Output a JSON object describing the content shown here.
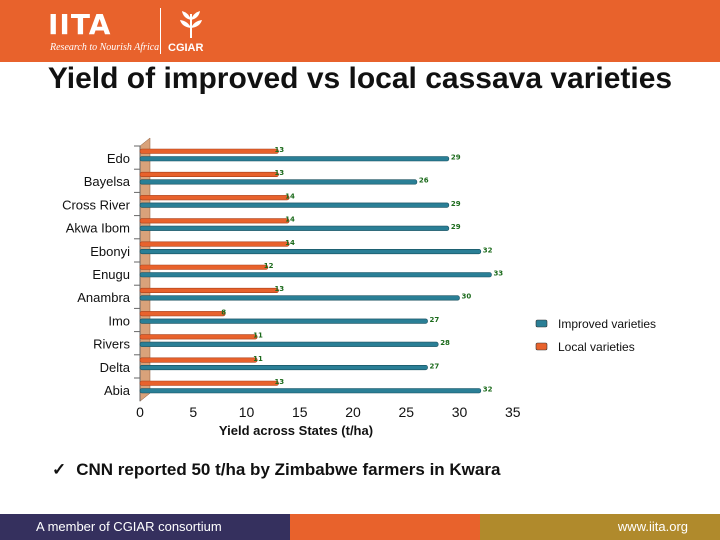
{
  "header": {
    "logo_text": "IITA",
    "tagline": "Research to Nourish Africa",
    "partner_logo_text": "CGIAR",
    "colors": {
      "orange": "#e8622c",
      "navy": "#35305e",
      "gold": "#b08a2c"
    }
  },
  "title": "Yield of improved vs local cassava varieties",
  "chart_data": {
    "type": "bar",
    "orientation": "horizontal",
    "categories": [
      "Edo",
      "Bayelsa",
      "Cross River",
      "Akwa Ibom",
      "Ebonyi",
      "Enugu",
      "Anambra",
      "Imo",
      "Rivers",
      "Delta",
      "Abia"
    ],
    "series": [
      {
        "name": "Local varieties",
        "color": "#e8622c",
        "values": [
          13,
          13,
          14,
          14,
          14,
          12,
          13,
          8,
          11,
          11,
          13
        ]
      },
      {
        "name": "Improved varieties",
        "color": "#2a7f96",
        "values": [
          29,
          26,
          29,
          29,
          32,
          33,
          30,
          27,
          28,
          27,
          32
        ]
      }
    ],
    "xlabel": "Yield across States (t/ha)",
    "xticks": [
      0,
      5,
      10,
      15,
      20,
      25,
      30,
      35
    ],
    "xlim": [
      0,
      35
    ],
    "legend_position": "right",
    "grid": false
  },
  "bullet": {
    "check": "✓",
    "text": "CNN reported 50 t/ha by Zimbabwe farmers in Kwara"
  },
  "footer": {
    "left": "A member of CGIAR consortium",
    "right": "www.iita.org"
  }
}
